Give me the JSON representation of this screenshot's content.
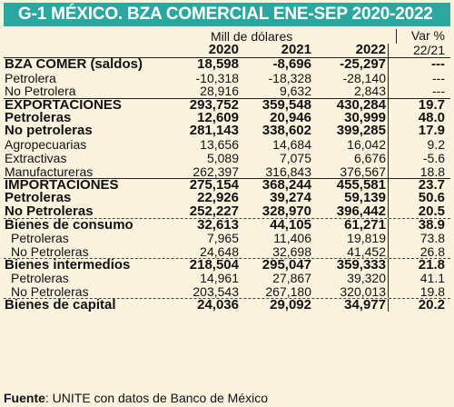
{
  "title": "G-1 MÉXICO. BZA COMERCIAL ENE-SEP 2020-2022",
  "header": {
    "unit": "Mill de dólares",
    "var_label": "Var %",
    "years": [
      "2020",
      "2021",
      "2022"
    ],
    "var_period": "22/21"
  },
  "rows": [
    {
      "label": "BZA COMER (saldos)",
      "v2020": "18,598",
      "v2021": "-8,696",
      "v2022": "-25,297",
      "var": "---"
    },
    {
      "label": "Petrolera",
      "v2020": "-10,318",
      "v2021": "-18,328",
      "v2022": "-28,140",
      "var": "---"
    },
    {
      "label": "No Petrolera",
      "v2020": "28,916",
      "v2021": "9,632",
      "v2022": "2,843",
      "var": "---"
    },
    {
      "label": "EXPORTACIONES",
      "v2020": "293,752",
      "v2021": "359,548",
      "v2022": "430,284",
      "var": "19.7"
    },
    {
      "label": "Petroleras",
      "v2020": "12,609",
      "v2021": "20,946",
      "v2022": "30,999",
      "var": "48.0"
    },
    {
      "label": "No petroleras",
      "v2020": "281,143",
      "v2021": "338,602",
      "v2022": "399,285",
      "var": "17.9"
    },
    {
      "label": "Agropecuarias",
      "v2020": "13,656",
      "v2021": "14,684",
      "v2022": "16,042",
      "var": "9.2"
    },
    {
      "label": "Extractivas",
      "v2020": "5,089",
      "v2021": "7,075",
      "v2022": "6,676",
      "var": "-5.6"
    },
    {
      "label": "Manufactureras",
      "v2020": "262,397",
      "v2021": "316,843",
      "v2022": "376,567",
      "var": "18.8"
    },
    {
      "label": "IMPORTACIONES",
      "v2020": "275,154",
      "v2021": "368,244",
      "v2022": "455,581",
      "var": "23.7"
    },
    {
      "label": "Petroleras",
      "v2020": "22,926",
      "v2021": "39,274",
      "v2022": "59,139",
      "var": "50.6"
    },
    {
      "label": "No Petroleras",
      "v2020": "252,227",
      "v2021": "328,970",
      "v2022": "396,442",
      "var": "20.5"
    },
    {
      "label": "Bienes de consumo",
      "v2020": "32,613",
      "v2021": "44,105",
      "v2022": "61,271",
      "var": "38.9"
    },
    {
      "label": "Petroleras",
      "v2020": "7,965",
      "v2021": "11,406",
      "v2022": "19,819",
      "var": "73.8"
    },
    {
      "label": "No Petroleras",
      "v2020": "24,648",
      "v2021": "32,698",
      "v2022": "41,452",
      "var": "26.8"
    },
    {
      "label": "Bienes intermedios",
      "v2020": "218,504",
      "v2021": "295,047",
      "v2022": "359,333",
      "var": "21.8"
    },
    {
      "label": "Petroleras",
      "v2020": "14,961",
      "v2021": "27,867",
      "v2022": "39,320",
      "var": "41.1"
    },
    {
      "label": "No Petroleras",
      "v2020": "203,543",
      "v2021": "267,180",
      "v2022": "320,013",
      "var": "19.8"
    },
    {
      "label": "Bienes de capital",
      "v2020": "24,036",
      "v2021": "29,092",
      "v2022": "34,977",
      "var": "20.2"
    }
  ],
  "footer": {
    "source_label": "Fuente",
    "source_text": ": UNITE con datos de Banco de México"
  },
  "colors": {
    "title_bg": "#2aa8a0",
    "page_bg": "#fbf3dd"
  }
}
